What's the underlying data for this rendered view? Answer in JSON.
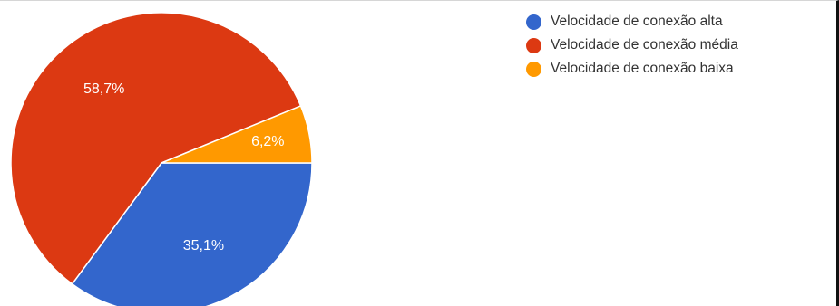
{
  "chart_data": {
    "type": "pie",
    "title": "",
    "categories": [
      "Velocidade de conexão alta",
      "Velocidade de conexão média",
      "Velocidade de conexão baixa"
    ],
    "values": [
      35.1,
      58.7,
      6.2
    ],
    "labels": [
      "35,1%",
      "58,7%",
      "6,2%"
    ],
    "colors": [
      "#3366cc",
      "#dc3912",
      "#ff9900"
    ],
    "legend_position": "top-right"
  }
}
